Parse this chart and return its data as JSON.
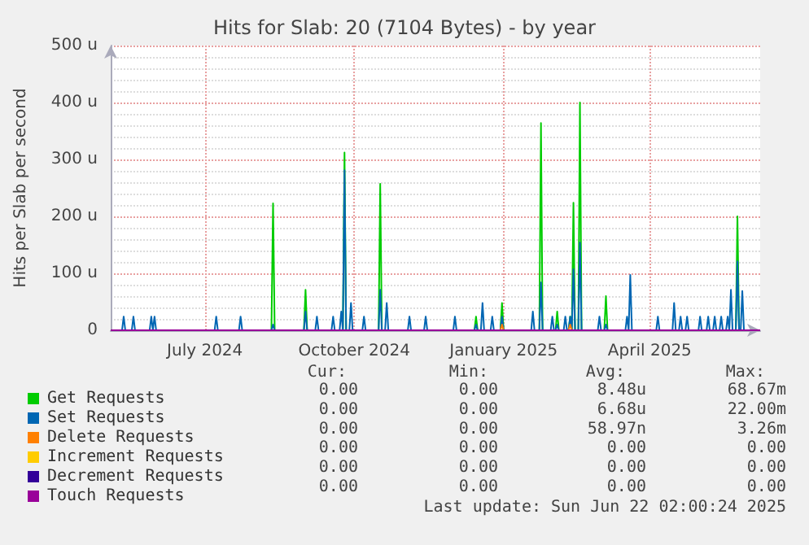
{
  "chart_data": {
    "type": "line",
    "title": "Hits for Slab: 20 (7104 Bytes) - by year",
    "ylabel": "Hits per Slab per second",
    "xlim": [
      "2024-05-18",
      "2025-06-22"
    ],
    "xticks": [
      {
        "value": "2024-07-15",
        "label": "July 2024"
      },
      {
        "value": "2024-10-15",
        "label": "October 2024"
      },
      {
        "value": "2025-01-15",
        "label": "January 2025"
      },
      {
        "value": "2025-04-15",
        "label": "April 2025"
      }
    ],
    "ylim": [
      0,
      500
    ],
    "yticks": [
      0,
      {
        "value": 100,
        "label": "100 u"
      },
      {
        "value": 200,
        "label": "200 u"
      },
      {
        "value": 300,
        "label": "300 u"
      },
      {
        "value": 400,
        "label": "400 u"
      },
      {
        "value": 500,
        "label": "500 u"
      }
    ],
    "grid": true,
    "legend": "bottom",
    "marker": "none",
    "series": [
      {
        "name": "Get Requests",
        "color": "#00cc00",
        "x": [
          "2024-05-18",
          "2024-08-25",
          "2024-08-26",
          "2024-08-27",
          "2024-09-14",
          "2024-09-15",
          "2024-09-16",
          "2024-10-08",
          "2024-10-09",
          "2024-10-10",
          "2024-10-30",
          "2024-10-31",
          "2024-11-01",
          "2024-12-28",
          "2024-12-29",
          "2024-12-30",
          "2025-01-13",
          "2025-01-14",
          "2025-01-15",
          "2025-02-06",
          "2025-02-07",
          "2025-02-08",
          "2025-02-16",
          "2025-02-17",
          "2025-02-18",
          "2025-02-24",
          "2025-02-25",
          "2025-02-26",
          "2025-02-27",
          "2025-02-28",
          "2025-03-02",
          "2025-03-03",
          "2025-03-04",
          "2025-03-18",
          "2025-03-19",
          "2025-03-20",
          "2025-06-07",
          "2025-06-08",
          "2025-06-09",
          "2025-06-22"
        ],
        "values": [
          0,
          0,
          223,
          0,
          0,
          71,
          0,
          0,
          312,
          0,
          0,
          257,
          0,
          0,
          24,
          0,
          0,
          48,
          0,
          0,
          364,
          0,
          0,
          33,
          0,
          0,
          24,
          0,
          224,
          0,
          0,
          400,
          0,
          0,
          60,
          0,
          0,
          200,
          0,
          0
        ]
      },
      {
        "name": "Set Requests",
        "color": "#0066b3",
        "x": [
          "2024-05-18",
          "2024-05-25",
          "2024-05-26",
          "2024-05-27",
          "2024-05-31",
          "2024-06-01",
          "2024-06-02",
          "2024-06-11",
          "2024-06-12",
          "2024-06-13",
          "2024-06-14",
          "2024-06-15",
          "2024-07-21",
          "2024-07-22",
          "2024-07-23",
          "2024-08-05",
          "2024-08-06",
          "2024-08-07",
          "2024-08-25",
          "2024-08-26",
          "2024-08-27",
          "2024-09-14",
          "2024-09-15",
          "2024-09-16",
          "2024-09-21",
          "2024-09-22",
          "2024-09-23",
          "2024-10-01",
          "2024-10-02",
          "2024-10-03",
          "2024-10-06",
          "2024-10-07",
          "2024-10-08",
          "2024-10-09",
          "2024-10-10",
          "2024-10-12",
          "2024-10-13",
          "2024-10-14",
          "2024-10-20",
          "2024-10-21",
          "2024-10-22",
          "2024-10-30",
          "2024-10-31",
          "2024-11-01",
          "2024-11-03",
          "2024-11-04",
          "2024-11-05",
          "2024-11-17",
          "2024-11-18",
          "2024-11-19",
          "2024-11-27",
          "2024-11-28",
          "2024-11-29",
          "2024-12-15",
          "2024-12-16",
          "2024-12-17",
          "2024-12-28",
          "2024-12-29",
          "2024-12-30",
          "2025-01-01",
          "2025-01-02",
          "2025-01-03",
          "2025-01-07",
          "2025-01-08",
          "2025-01-09",
          "2025-01-13",
          "2025-01-14",
          "2025-01-15",
          "2025-02-01",
          "2025-02-02",
          "2025-02-03",
          "2025-02-06",
          "2025-02-07",
          "2025-02-08",
          "2025-02-13",
          "2025-02-14",
          "2025-02-15",
          "2025-02-16",
          "2025-02-17",
          "2025-02-18",
          "2025-02-21",
          "2025-02-22",
          "2025-02-23",
          "2025-02-24",
          "2025-02-25",
          "2025-02-26",
          "2025-02-27",
          "2025-02-28",
          "2025-03-02",
          "2025-03-03",
          "2025-03-04",
          "2025-03-14",
          "2025-03-15",
          "2025-03-16",
          "2025-03-18",
          "2025-03-19",
          "2025-03-20",
          "2025-03-31",
          "2025-04-01",
          "2025-04-02",
          "2025-04-03",
          "2025-04-04",
          "2025-04-19",
          "2025-04-20",
          "2025-04-21",
          "2025-04-29",
          "2025-04-30",
          "2025-05-01",
          "2025-05-03",
          "2025-05-04",
          "2025-05-05",
          "2025-05-07",
          "2025-05-08",
          "2025-05-09",
          "2025-05-15",
          "2025-05-16",
          "2025-05-17",
          "2025-05-20",
          "2025-05-21",
          "2025-05-22",
          "2025-05-24",
          "2025-05-25",
          "2025-05-26",
          "2025-05-28",
          "2025-05-29",
          "2025-05-30",
          "2025-06-01",
          "2025-06-02",
          "2025-06-03",
          "2025-06-04",
          "2025-06-05",
          "2025-06-07",
          "2025-06-08",
          "2025-06-09",
          "2025-06-10",
          "2025-06-11",
          "2025-06-12",
          "2025-06-22"
        ],
        "values": [
          0,
          0,
          24,
          0,
          0,
          24,
          0,
          0,
          24,
          0,
          24,
          0,
          0,
          24,
          0,
          0,
          24,
          0,
          0,
          10,
          0,
          0,
          33,
          0,
          0,
          24,
          0,
          0,
          24,
          0,
          0,
          33,
          0,
          281,
          0,
          0,
          48,
          0,
          0,
          24,
          0,
          0,
          71,
          0,
          0,
          48,
          0,
          0,
          24,
          0,
          0,
          24,
          0,
          0,
          24,
          0,
          0,
          10,
          0,
          0,
          48,
          0,
          0,
          24,
          0,
          0,
          24,
          0,
          0,
          33,
          0,
          0,
          84,
          0,
          0,
          24,
          0,
          0,
          10,
          0,
          0,
          24,
          0,
          0,
          24,
          0,
          107,
          0,
          0,
          154,
          0,
          0,
          24,
          0,
          0,
          10,
          0,
          0,
          24,
          0,
          97,
          0,
          0,
          24,
          0,
          0,
          48,
          0,
          0,
          24,
          0,
          0,
          24,
          0,
          0,
          24,
          0,
          0,
          24,
          0,
          0,
          24,
          0,
          0,
          24,
          0,
          0,
          24,
          0,
          71,
          0,
          0,
          121,
          0,
          0,
          69,
          0,
          0
        ]
      },
      {
        "name": "Delete Requests",
        "color": "#ff8000",
        "x": [
          "2025-01-13",
          "2025-01-14",
          "2025-01-15",
          "2025-01-16",
          "2025-02-24",
          "2025-02-25",
          "2025-02-26"
        ],
        "values": [
          0,
          10,
          0,
          null,
          0,
          10,
          0
        ]
      },
      {
        "name": "Increment Requests",
        "color": "#ffcc00"
      },
      {
        "name": "Decrement Requests",
        "color": "#330099"
      },
      {
        "name": "Touch Requests",
        "color": "#990099",
        "x": [
          "2024-05-18",
          "2025-06-22"
        ],
        "values": [
          0,
          0
        ]
      }
    ],
    "annotations": [
      "Cur:",
      "Min:",
      "Avg:",
      "Max:",
      "0.00",
      "0.00",
      "8.48u",
      "68.67m",
      "0.00",
      "0.00",
      "6.68u",
      "22.00m",
      "0.00",
      "0.00",
      "58.97n",
      "3.26m",
      "0.00",
      "0.00",
      "0.00",
      "0.00",
      "0.00",
      "0.00",
      "0.00",
      "0.00",
      "0.00",
      "0.00",
      "0.00",
      "0.00",
      "Last update: Sun Jun 22 02:00:24 2025"
    ]
  }
}
